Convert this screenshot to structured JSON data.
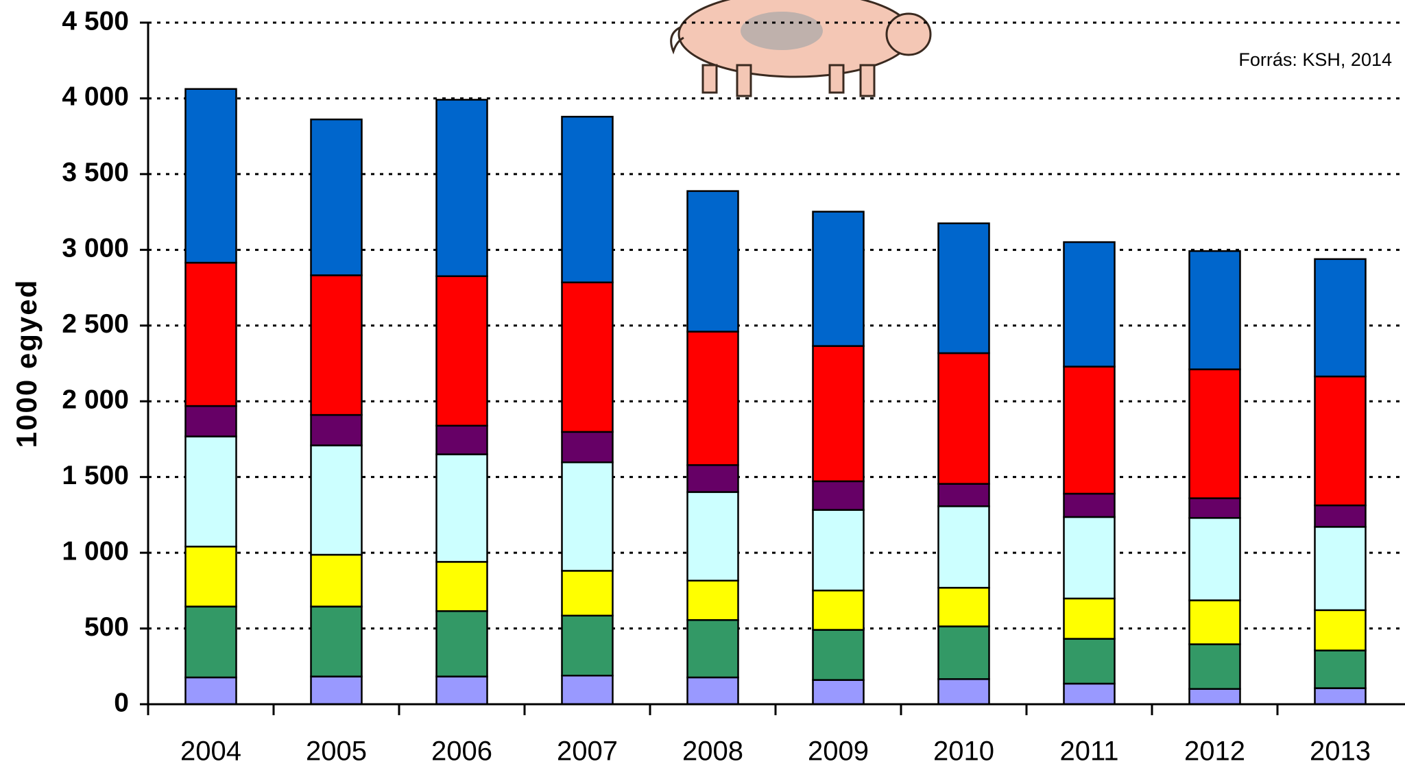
{
  "chart_data": {
    "type": "stacked_bar",
    "source": "Forrás: KSH, 2014",
    "y_label": "1000 egyed",
    "categories": [
      "2004",
      "2005",
      "2006",
      "2007",
      "2008",
      "2009",
      "2010",
      "2011",
      "2012",
      "2013"
    ],
    "series": [
      {
        "color": "#9999ff",
        "values": [
          177,
          183,
          183,
          189,
          177,
          160,
          166,
          136,
          101,
          106
        ]
      },
      {
        "color": "#339966",
        "values": [
          468,
          462,
          432,
          396,
          379,
          331,
          348,
          296,
          295,
          249
        ]
      },
      {
        "color": "#ffff00",
        "values": [
          396,
          342,
          325,
          296,
          260,
          260,
          255,
          266,
          290,
          266
        ]
      },
      {
        "color": "#ccffff",
        "values": [
          727,
          722,
          710,
          716,
          585,
          532,
          538,
          538,
          544,
          550
        ]
      },
      {
        "color": "#660066",
        "values": [
          201,
          201,
          189,
          201,
          178,
          189,
          148,
          154,
          130,
          142
        ]
      },
      {
        "color": "#ff0000",
        "values": [
          946,
          922,
          987,
          987,
          881,
          893,
          863,
          839,
          851,
          851
        ]
      },
      {
        "color": "#0066cc",
        "values": [
          1147,
          1029,
          1165,
          1094,
          928,
          887,
          857,
          822,
          781,
          775
        ]
      }
    ],
    "ylim": [
      0,
      4500
    ],
    "yticks": [
      0,
      500,
      {
        "value": 1000,
        "label": "1 000"
      },
      {
        "value": 1500,
        "label": "1 500"
      },
      {
        "value": 2000,
        "label": "2 000"
      },
      {
        "value": 2500,
        "label": "2 500"
      },
      {
        "value": 3000,
        "label": "3 000"
      },
      {
        "value": 3500,
        "label": "3 500"
      },
      {
        "value": 4000,
        "label": "4 000"
      },
      {
        "value": 4500,
        "label": "4 500"
      }
    ],
    "grid": true
  }
}
